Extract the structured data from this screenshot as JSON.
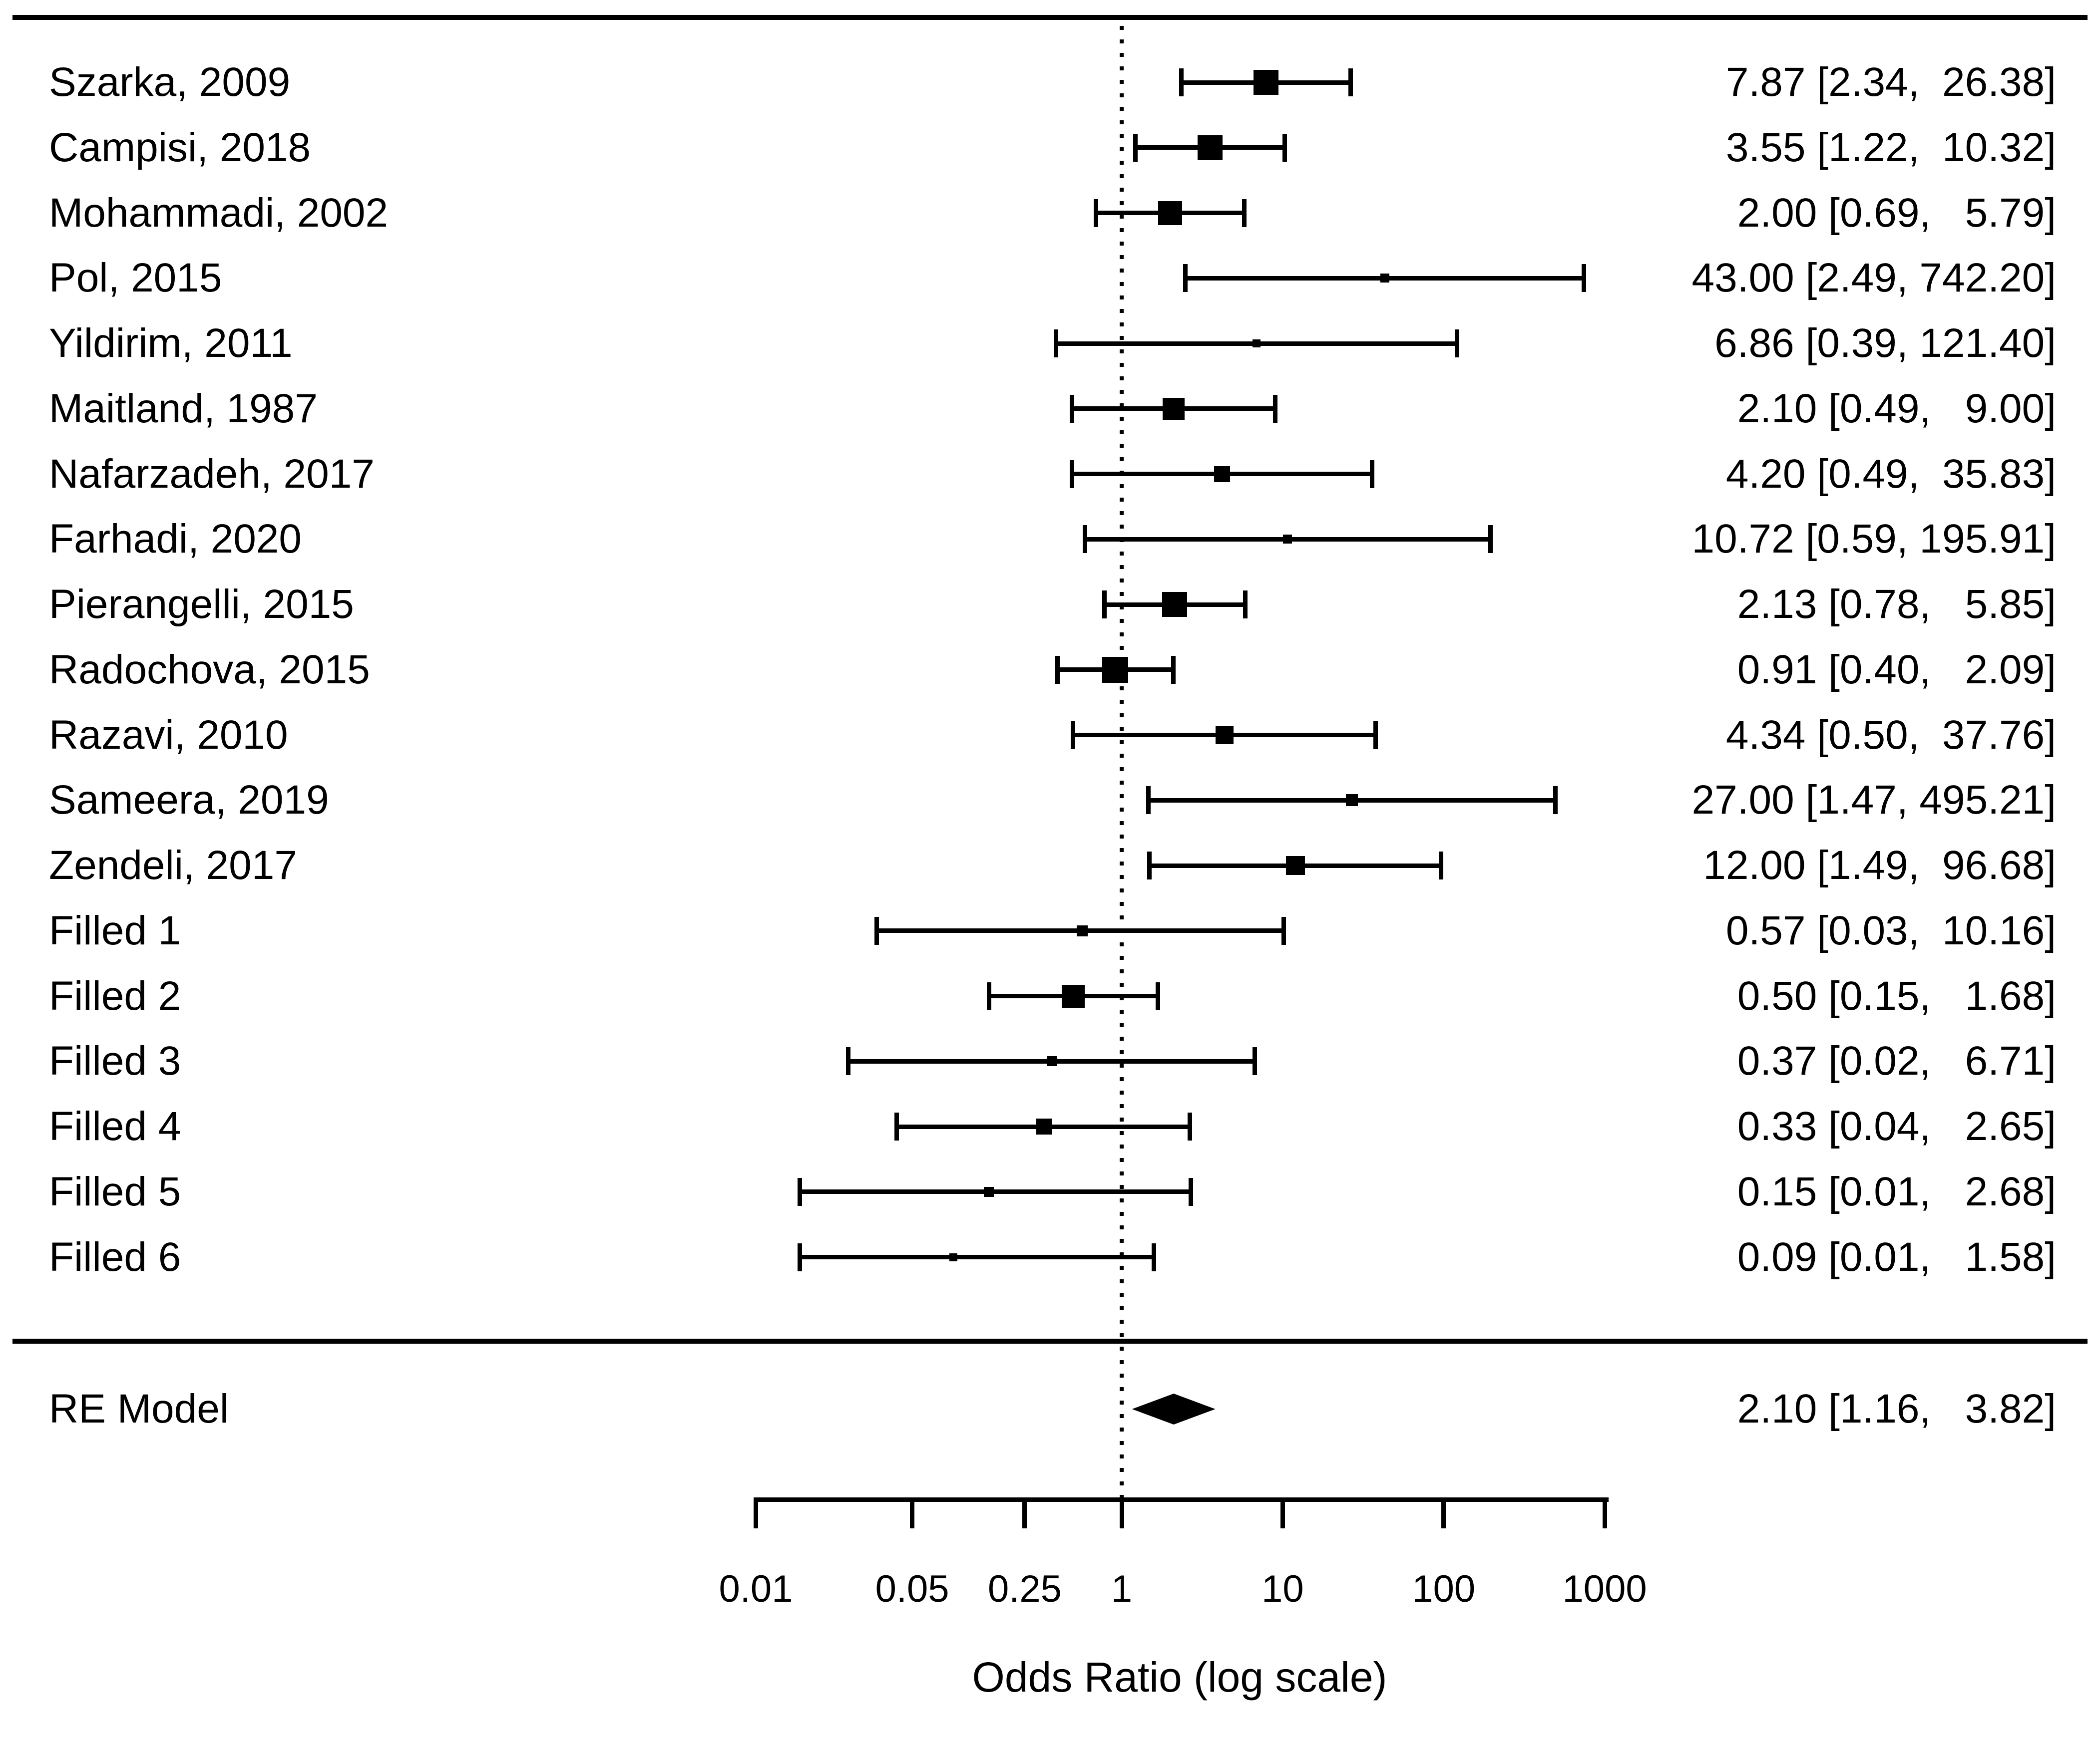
{
  "figure": {
    "xlabel": "Odds Ratio (log scale)",
    "summary_label": "RE Model"
  },
  "chart_data": {
    "type": "forest",
    "title": "",
    "xlabel": "Odds Ratio (log scale)",
    "scale": "log",
    "x_ticks": [
      0.01,
      0.05,
      0.25,
      1,
      10,
      100,
      1000
    ],
    "x_tick_labels": [
      "0.01",
      "0.05",
      "0.25",
      "1",
      "10",
      "100",
      "1000"
    ],
    "axis_range": [
      0.01,
      1000
    ],
    "reference_line": 1,
    "grid": false,
    "legend_position": "none",
    "value_format": "est [lo, hi]",
    "studies": [
      {
        "label": "Szarka, 2009",
        "est": 7.87,
        "lo": 2.34,
        "hi": 26.38,
        "sq": 50
      },
      {
        "label": "Campisi, 2018",
        "est": 3.55,
        "lo": 1.22,
        "hi": 10.32,
        "sq": 50
      },
      {
        "label": "Mohammadi, 2002",
        "est": 2.0,
        "lo": 0.69,
        "hi": 5.79,
        "sq": 48
      },
      {
        "label": "Pol, 2015",
        "est": 43.0,
        "lo": 2.49,
        "hi": 742.2,
        "sq": 18
      },
      {
        "label": "Yildirim, 2011",
        "est": 6.86,
        "lo": 0.39,
        "hi": 121.4,
        "sq": 16
      },
      {
        "label": "Maitland, 1987",
        "est": 2.1,
        "lo": 0.49,
        "hi": 9.0,
        "sq": 44
      },
      {
        "label": "Nafarzadeh, 2017",
        "est": 4.2,
        "lo": 0.49,
        "hi": 35.83,
        "sq": 32
      },
      {
        "label": "Farhadi, 2020",
        "est": 10.72,
        "lo": 0.59,
        "hi": 195.91,
        "sq": 18
      },
      {
        "label": "Pierangelli, 2015",
        "est": 2.13,
        "lo": 0.78,
        "hi": 5.85,
        "sq": 50
      },
      {
        "label": "Radochova, 2015",
        "est": 0.91,
        "lo": 0.4,
        "hi": 2.09,
        "sq": 52
      },
      {
        "label": "Razavi, 2010",
        "est": 4.34,
        "lo": 0.5,
        "hi": 37.76,
        "sq": 36
      },
      {
        "label": "Sameera, 2019",
        "est": 27.0,
        "lo": 1.47,
        "hi": 495.21,
        "sq": 24
      },
      {
        "label": "Zendeli, 2017",
        "est": 12.0,
        "lo": 1.49,
        "hi": 96.68,
        "sq": 38
      },
      {
        "label": "Filled 1",
        "est": 0.57,
        "lo": 0.03,
        "hi": 10.16,
        "sq": 22
      },
      {
        "label": "Filled 2",
        "est": 0.5,
        "lo": 0.15,
        "hi": 1.68,
        "sq": 46
      },
      {
        "label": "Filled 3",
        "est": 0.37,
        "lo": 0.02,
        "hi": 6.71,
        "sq": 20
      },
      {
        "label": "Filled 4",
        "est": 0.33,
        "lo": 0.04,
        "hi": 2.65,
        "sq": 32
      },
      {
        "label": "Filled 5",
        "est": 0.15,
        "lo": 0.01,
        "hi": 2.68,
        "sq": 20
      },
      {
        "label": "Filled 6",
        "est": 0.09,
        "lo": 0.01,
        "hi": 1.58,
        "sq": 16
      }
    ],
    "summary": {
      "label": "RE Model",
      "est": 2.1,
      "lo": 1.16,
      "hi": 3.82
    }
  }
}
